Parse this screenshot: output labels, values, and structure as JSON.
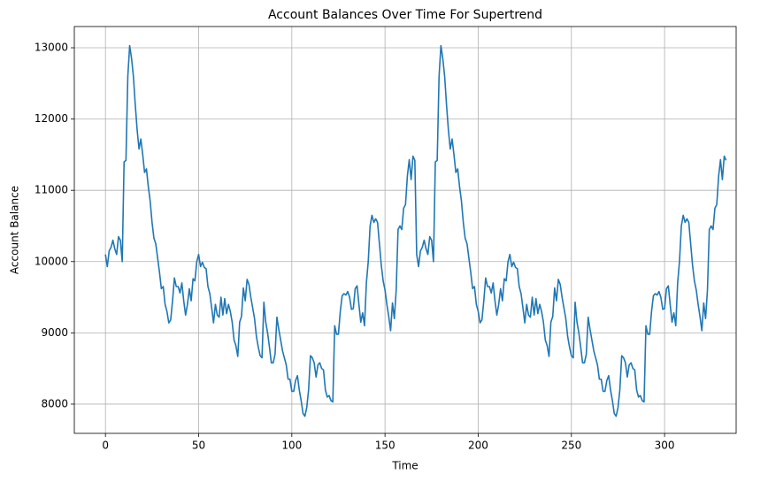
{
  "chart_data": {
    "type": "line",
    "title": "Account Balances Over Time For Supertrend",
    "x_label": "Time",
    "y_label": "Account Balance",
    "grid": true,
    "xlim": [
      -16.7,
      338.4
    ],
    "xticks": [
      0,
      50,
      100,
      150,
      200,
      250,
      300
    ],
    "ylim": [
      7590,
      13298
    ],
    "yticks": [
      8000,
      9000,
      10000,
      11000,
      12000,
      13000
    ],
    "x": [
      0,
      1,
      2,
      3,
      4,
      5,
      6,
      7,
      8,
      9,
      10,
      11,
      12,
      13,
      14,
      15,
      16,
      17,
      18,
      19,
      20,
      21,
      22,
      23,
      24,
      25,
      26,
      27,
      28,
      29,
      30,
      31,
      32,
      33,
      34,
      35,
      36,
      37,
      38,
      39,
      40,
      41,
      42,
      43,
      44,
      45,
      46,
      47,
      48,
      49,
      50,
      51,
      52,
      53,
      54,
      55,
      56,
      57,
      58,
      59,
      60,
      61,
      62,
      63,
      64,
      65,
      66,
      67,
      68,
      69,
      70,
      71,
      72,
      73,
      74,
      75,
      76,
      77,
      78,
      79,
      80,
      81,
      82,
      83,
      84,
      85,
      86,
      87,
      88,
      89,
      90,
      91,
      92,
      93,
      94,
      95,
      96,
      97,
      98,
      99,
      100,
      101,
      102,
      103,
      104,
      105,
      106,
      107,
      108,
      109,
      110,
      111,
      112,
      113,
      114,
      115,
      116,
      117,
      118,
      119,
      120,
      121,
      122,
      123,
      124,
      125,
      126,
      127,
      128,
      129,
      130,
      131,
      132,
      133,
      134,
      135,
      136,
      137,
      138,
      139,
      140,
      141,
      142,
      143,
      144,
      145,
      146,
      147,
      148,
      149,
      150,
      151,
      152,
      153,
      154,
      155,
      156,
      157,
      158,
      159,
      160,
      161,
      162,
      163,
      164,
      165,
      166,
      167,
      168,
      169,
      170,
      171,
      172,
      173,
      174,
      175,
      176,
      177,
      178,
      179,
      180,
      181,
      182,
      183,
      184,
      185,
      186,
      187,
      188,
      189,
      190,
      191,
      192,
      193,
      194,
      195,
      196,
      197,
      198,
      199,
      200,
      201,
      202,
      203,
      204,
      205,
      206,
      207,
      208,
      209,
      210,
      211,
      212,
      213,
      214,
      215,
      216,
      217,
      218,
      219,
      220,
      221,
      222,
      223,
      224,
      225,
      226,
      227,
      228,
      229,
      230,
      231,
      232,
      233,
      234,
      235,
      236,
      237,
      238,
      239,
      240,
      241,
      242,
      243,
      244,
      245,
      246,
      247,
      248,
      249,
      250,
      251,
      252,
      253,
      254,
      255,
      256,
      257,
      258,
      259,
      260,
      261,
      262,
      263,
      264,
      265,
      266,
      267,
      268,
      269,
      270,
      271,
      272,
      273,
      274,
      275,
      276,
      277,
      278,
      279,
      280,
      281,
      282,
      283,
      284,
      285,
      286,
      287,
      288,
      289,
      290,
      291,
      292,
      293,
      294,
      295,
      296,
      297,
      298,
      299,
      300,
      301,
      302,
      303,
      304,
      305,
      306,
      307,
      308,
      309,
      310,
      311,
      312,
      313,
      314,
      315,
      316,
      317,
      318,
      319,
      320,
      321,
      322,
      323,
      324,
      325,
      326,
      327,
      328,
      329,
      330,
      331,
      332,
      333
    ],
    "series": [
      {
        "name": "Account Balance",
        "color": "#1f77b4",
        "values": [
          10100,
          9930,
          10150,
          10200,
          10300,
          10180,
          10100,
          10350,
          10300,
          10000,
          11400,
          11420,
          12600,
          13030,
          12850,
          12600,
          12200,
          11850,
          11580,
          11720,
          11500,
          11250,
          11300,
          11050,
          10850,
          10550,
          10330,
          10250,
          10050,
          9850,
          9620,
          9650,
          9400,
          9300,
          9140,
          9180,
          9450,
          9770,
          9650,
          9650,
          9560,
          9700,
          9450,
          9250,
          9400,
          9620,
          9450,
          9760,
          9730,
          10000,
          10100,
          9930,
          9990,
          9920,
          9900,
          9650,
          9550,
          9350,
          9140,
          9400,
          9250,
          9220,
          9500,
          9250,
          9480,
          9270,
          9400,
          9300,
          9150,
          8900,
          8820,
          8670,
          9150,
          9230,
          9630,
          9450,
          9750,
          9680,
          9500,
          9350,
          9200,
          8950,
          8800,
          8680,
          8650,
          9430,
          9150,
          9000,
          8800,
          8580,
          8580,
          8700,
          9220,
          9050,
          8900,
          8750,
          8650,
          8550,
          8350,
          8350,
          8180,
          8180,
          8330,
          8400,
          8200,
          8050,
          7870,
          7830,
          7950,
          8200,
          8680,
          8650,
          8580,
          8380,
          8550,
          8580,
          8500,
          8480,
          8200,
          8100,
          8120,
          8050,
          8030,
          9100,
          8980,
          8980,
          9300,
          9520,
          9550,
          9530,
          9580,
          9500,
          9330,
          9340,
          9620,
          9660,
          9400,
          9150,
          9280,
          9100,
          9700,
          10000,
          10500,
          10650,
          10550,
          10600,
          10550,
          10250,
          9950,
          9730,
          9600,
          9400,
          9230,
          9030,
          9420,
          9200,
          9600,
          10450,
          10500,
          10450,
          10750,
          10800,
          11200,
          11430,
          11150,
          11480,
          11420,
          10100,
          9930,
          10150,
          10200,
          10300,
          10180,
          10100,
          10350,
          10300,
          10000,
          11400,
          11420,
          12600,
          13030,
          12850,
          12600,
          12200,
          11850,
          11580,
          11720,
          11500,
          11250,
          11300,
          11050,
          10850,
          10550,
          10330,
          10250,
          10050,
          9850,
          9620,
          9650,
          9400,
          9300,
          9140,
          9180,
          9450,
          9770,
          9650,
          9650,
          9560,
          9700,
          9450,
          9250,
          9400,
          9620,
          9450,
          9760,
          9730,
          10000,
          10100,
          9930,
          9990,
          9920,
          9900,
          9650,
          9550,
          9350,
          9140,
          9400,
          9250,
          9220,
          9500,
          9250,
          9480,
          9270,
          9400,
          9300,
          9150,
          8900,
          8820,
          8670,
          9150,
          9230,
          9630,
          9450,
          9750,
          9680,
          9500,
          9350,
          9200,
          8950,
          8800,
          8680,
          8650,
          9430,
          9150,
          9000,
          8800,
          8580,
          8580,
          8700,
          9220,
          9050,
          8900,
          8750,
          8650,
          8550,
          8350,
          8350,
          8180,
          8180,
          8330,
          8400,
          8200,
          8050,
          7870,
          7830,
          7950,
          8200,
          8680,
          8650,
          8580,
          8380,
          8550,
          8580,
          8500,
          8480,
          8200,
          8100,
          8120,
          8050,
          8030,
          9100,
          8980,
          8980,
          9300,
          9520,
          9550,
          9530,
          9580,
          9500,
          9330,
          9340,
          9620,
          9660,
          9400,
          9150,
          9280,
          9100,
          9700,
          10000,
          10500,
          10650,
          10550,
          10600,
          10550,
          10250,
          9950,
          9730,
          9600,
          9400,
          9230,
          9030,
          9420,
          9200,
          9600,
          10450,
          10500,
          10450,
          10750,
          10800,
          11200,
          11430,
          11150,
          11480,
          11420
        ]
      }
    ]
  }
}
